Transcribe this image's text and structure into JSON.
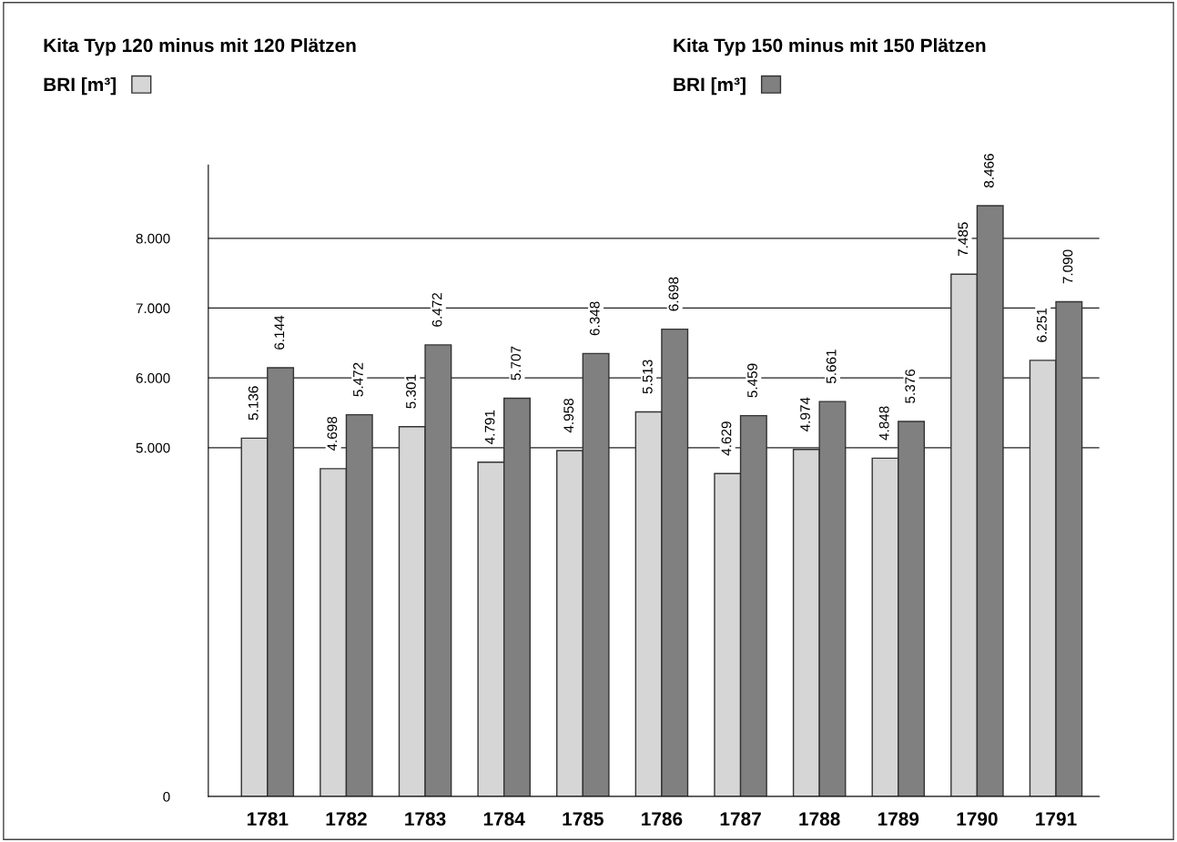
{
  "chart_data": {
    "type": "bar",
    "annotations": [
      "Kita Typ 120 minus mit 120 Plätzen",
      "Kita Typ 150 minus mit 150 Plätzen"
    ],
    "categories": [
      "1781",
      "1782",
      "1783",
      "1784",
      "1785",
      "1786",
      "1787",
      "1788",
      "1789",
      "1790",
      "1791"
    ],
    "series": [
      {
        "name": "BRI [m³]",
        "color": "#d6d6d6",
        "values": [
          5136,
          4698,
          5301,
          4791,
          4958,
          5513,
          4629,
          4974,
          4848,
          7485,
          6251
        ],
        "value_labels": [
          "5.136",
          "4.698",
          "5.301",
          "4.791",
          "4.958",
          "5.513",
          "4.629",
          "4.974",
          "4.848",
          "7.485",
          "6.251"
        ]
      },
      {
        "name": "BRI [m³]",
        "color": "#808080",
        "values": [
          6144,
          5472,
          6472,
          5707,
          6348,
          6698,
          5459,
          5661,
          5376,
          8466,
          7090
        ],
        "value_labels": [
          "6.144",
          "5.472",
          "6.472",
          "5.707",
          "6.348",
          "6.698",
          "5.459",
          "5.661",
          "5.376",
          "8.466",
          "7.090"
        ]
      }
    ],
    "ylim": [
      0,
      9050
    ],
    "yticks": [
      {
        "value": 0,
        "label": "0"
      },
      {
        "value": 5000,
        "label": "5.000"
      },
      {
        "value": 6000,
        "label": "6.000"
      },
      {
        "value": 7000,
        "label": "7.000"
      },
      {
        "value": 8000,
        "label": "8.000"
      }
    ],
    "grid": "y",
    "legend": "top"
  }
}
